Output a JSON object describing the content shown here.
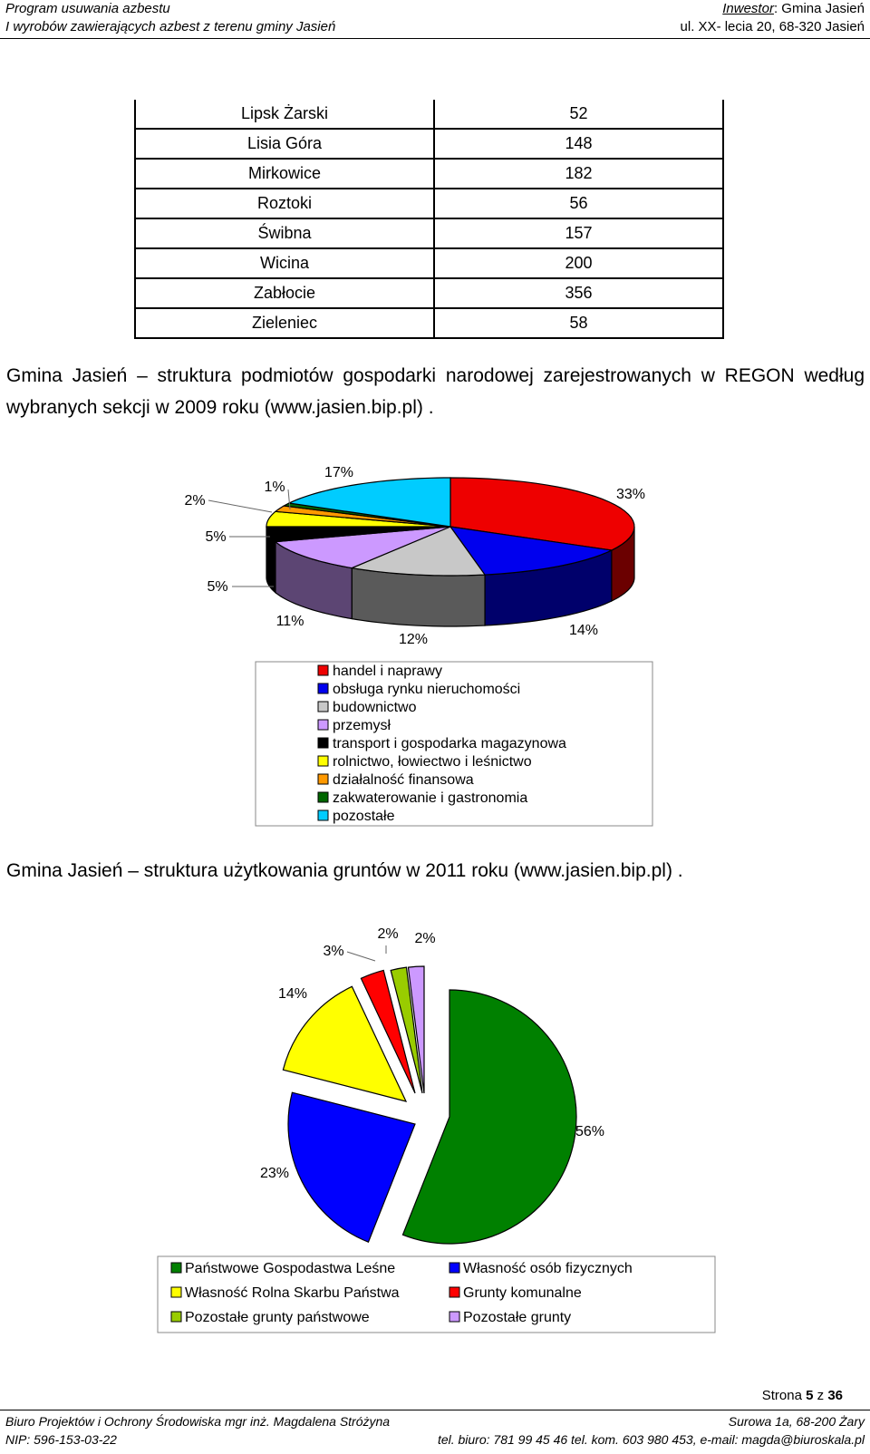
{
  "header": {
    "left_line1": "Program usuwania azbestu",
    "left_line2": "I wyrobów zawierających azbest z terenu gminy Jasień",
    "right_label": "Inwestor",
    "right_line1": ": Gmina Jasień",
    "right_line2": "ul. XX- lecia 20, 68-320 Jasień"
  },
  "table": {
    "rows": [
      {
        "name": "Lipsk Żarski",
        "value": "52"
      },
      {
        "name": "Lisia Góra",
        "value": "148"
      },
      {
        "name": "Mirkowice",
        "value": "182"
      },
      {
        "name": "Roztoki",
        "value": "56"
      },
      {
        "name": "Świbna",
        "value": "157"
      },
      {
        "name": "Wicina",
        "value": "200"
      },
      {
        "name": "Zabłocie",
        "value": "356"
      },
      {
        "name": "Zieleniec",
        "value": "58"
      }
    ]
  },
  "caption1": "Gmina Jasień – struktura podmiotów gospodarki narodowej zarejestrowanych w REGON według wybranych sekcji w 2009 roku (www.jasien.bip.pl) .",
  "caption2": "Gmina Jasień – struktura użytkowania gruntów w 2011 roku (www.jasien.bip.pl) .",
  "chart_data": [
    {
      "type": "pie",
      "style": "3d",
      "series": [
        {
          "name": "handel i naprawy",
          "value": 33,
          "label": "33%",
          "color": "#ee0000"
        },
        {
          "name": "obsługa rynku nieruchomości",
          "value": 14,
          "label": "14%",
          "color": "#0000ee"
        },
        {
          "name": "budownictwo",
          "value": 12,
          "label": "12%",
          "color": "#c8c8c8"
        },
        {
          "name": "przemysł",
          "value": 11,
          "label": "11%",
          "color": "#cc99ff"
        },
        {
          "name": "transport i gospodarka magazynowa",
          "value": 5,
          "label": "5%",
          "color": "#000000"
        },
        {
          "name": "rolnictwo, łowiectwo i leśnictwo",
          "value": 5,
          "label": "5%",
          "color": "#ffff00"
        },
        {
          "name": "działalność finansowa",
          "value": 2,
          "label": "2%",
          "color": "#ff9900"
        },
        {
          "name": "zakwaterowanie i gastronomia",
          "value": 1,
          "label": "1%",
          "color": "#006600"
        },
        {
          "name": "pozostałe",
          "value": 17,
          "label": "17%",
          "color": "#00ccff"
        }
      ],
      "legend_placement": "bottom"
    },
    {
      "type": "pie",
      "style": "exploded",
      "series": [
        {
          "name": "Państwowe Gospodastwa Leśne",
          "value": 56,
          "label": "56%",
          "color": "#008000"
        },
        {
          "name": "Własność osób fizycznych",
          "value": 23,
          "label": "23%",
          "color": "#0000ff"
        },
        {
          "name": "Własność Rolna Skarbu Państwa",
          "value": 14,
          "label": "14%",
          "color": "#ffff00"
        },
        {
          "name": "Grunty komunalne",
          "value": 3,
          "label": "3%",
          "color": "#ff0000"
        },
        {
          "name": "Pozostałe grunty państwowe",
          "value": 2,
          "label": "2%",
          "color": "#99cc00"
        },
        {
          "name": "Pozostałe grunty",
          "value": 2,
          "label": "2%",
          "color": "#cc99ff"
        }
      ],
      "legend_placement": "bottom"
    }
  ],
  "page": {
    "prefix": "Strona ",
    "current": "5",
    "mid": " z ",
    "total": "36"
  },
  "footer": {
    "left_line1": "Biuro Projektów i Ochrony Środowiska mgr inż. Magdalena Stróżyna",
    "left_line2": "NIP: 596-153-03-22",
    "right_line1": "Surowa 1a, 68-200 Żary",
    "right_line2": "tel. biuro: 781 99 45 46 tel. kom. 603 980 453, e-mail: magda@biuroskala.pl"
  }
}
